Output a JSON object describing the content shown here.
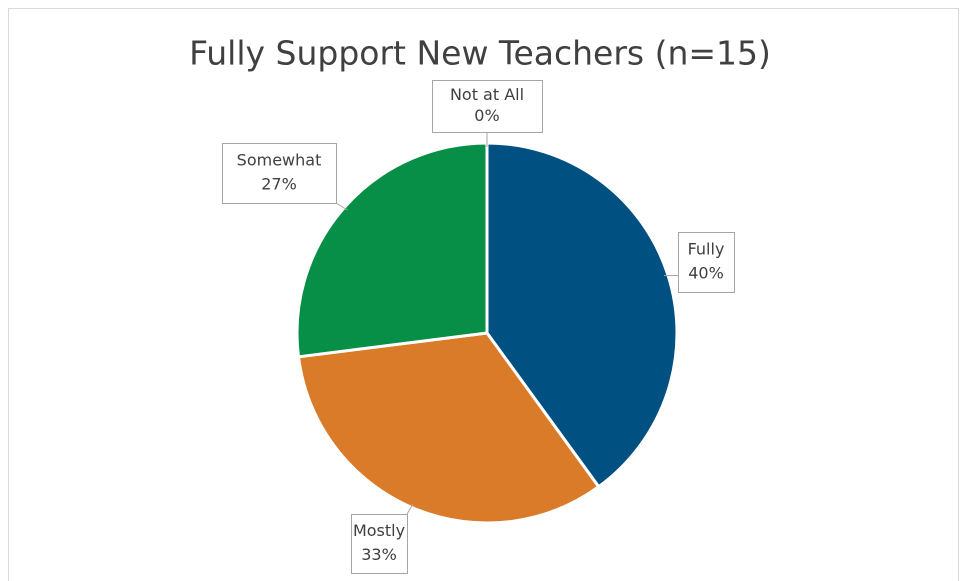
{
  "chart_data": {
    "type": "pie",
    "title": "Fully Support New Teachers (n=15)",
    "categories": [
      "Fully",
      "Mostly",
      "Somewhat",
      "Not at All"
    ],
    "values": [
      40,
      33,
      27,
      0
    ],
    "value_labels": [
      "40%",
      "33%",
      "27%",
      "0%"
    ],
    "colors": [
      "#005082",
      "#d97b29",
      "#078f47",
      "#7f7f7f"
    ]
  }
}
